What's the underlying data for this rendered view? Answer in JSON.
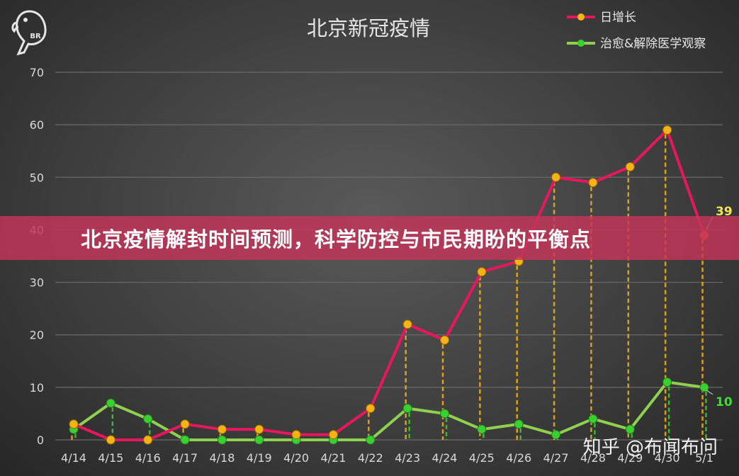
{
  "banner": {
    "text": "北京疫情解封时间预测，科学防控与市民期盼的平衡点"
  },
  "watermark": {
    "text": "知乎 @布闻布问"
  },
  "logo": {
    "text": "BR"
  },
  "colors": {
    "series1": "#e8175d",
    "series1_marker": "#f5b316",
    "series2": "#8fd14f",
    "series2_marker": "#39d12f",
    "grid": "#6a6a6a",
    "text": "#d9d9d9"
  },
  "chart_data": {
    "type": "line",
    "title": "北京新冠疫情",
    "xlabel": "",
    "ylabel": "",
    "ylim": [
      0,
      70
    ],
    "yticks": [
      "0",
      "10",
      "20",
      "30",
      "40",
      "50",
      "60",
      "70"
    ],
    "categories": [
      "4/14",
      "4/15",
      "4/16",
      "4/17",
      "4/18",
      "4/19",
      "4/20",
      "4/21",
      "4/22",
      "4/23",
      "4/24",
      "4/25",
      "4/26",
      "4/27",
      "4/28",
      "4/29",
      "4/30",
      "5/1"
    ],
    "series": [
      {
        "name": "日增长",
        "values": [
          3,
          0,
          0,
          3,
          2,
          2,
          1,
          1,
          6,
          22,
          19,
          32,
          34,
          50,
          49,
          52,
          59,
          39
        ]
      },
      {
        "name": "治愈&解除医学观察",
        "values": [
          2,
          7,
          4,
          0,
          0,
          0,
          0,
          0,
          0,
          6,
          5,
          2,
          3,
          1,
          4,
          2,
          11,
          10
        ]
      }
    ],
    "annotations": [
      {
        "series": 0,
        "index": 17,
        "text": "39"
      },
      {
        "series": 1,
        "index": 17,
        "text": "10"
      }
    ],
    "grid": true,
    "legend": "top-right"
  }
}
